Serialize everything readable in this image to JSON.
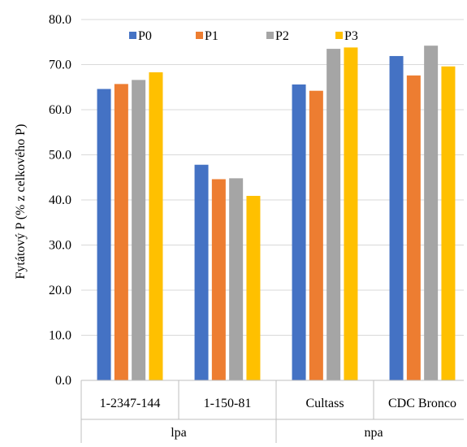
{
  "chart_data": {
    "type": "bar",
    "title": "",
    "ylabel": "Fytátový P (% z celkového P)",
    "xlabel": "",
    "ylim": [
      0,
      80
    ],
    "ytick_step": 10,
    "ytick_labels": [
      "0.0",
      "10.0",
      "20.0",
      "30.0",
      "40.0",
      "50.0",
      "60.0",
      "70.0",
      "80.0"
    ],
    "grid": true,
    "legend_position": "top",
    "groups": [
      {
        "label": "lpa",
        "categories": [
          "1-2347-144",
          "1-150-81"
        ]
      },
      {
        "label": "npa",
        "categories": [
          "Cultass",
          "CDC Bronco"
        ]
      }
    ],
    "categories": [
      "1-2347-144",
      "1-150-81",
      "Cultass",
      "CDC Bronco"
    ],
    "series": [
      {
        "name": "P0",
        "color": "#4472C4",
        "values": [
          64.6,
          47.8,
          65.6,
          71.9
        ]
      },
      {
        "name": "P1",
        "color": "#ED7D31",
        "values": [
          65.7,
          44.6,
          64.2,
          67.6
        ]
      },
      {
        "name": "P2",
        "color": "#A5A5A5",
        "values": [
          66.6,
          44.8,
          73.5,
          74.2
        ]
      },
      {
        "name": "P3",
        "color": "#FFC000",
        "values": [
          68.3,
          40.9,
          73.8,
          69.6
        ]
      }
    ]
  }
}
